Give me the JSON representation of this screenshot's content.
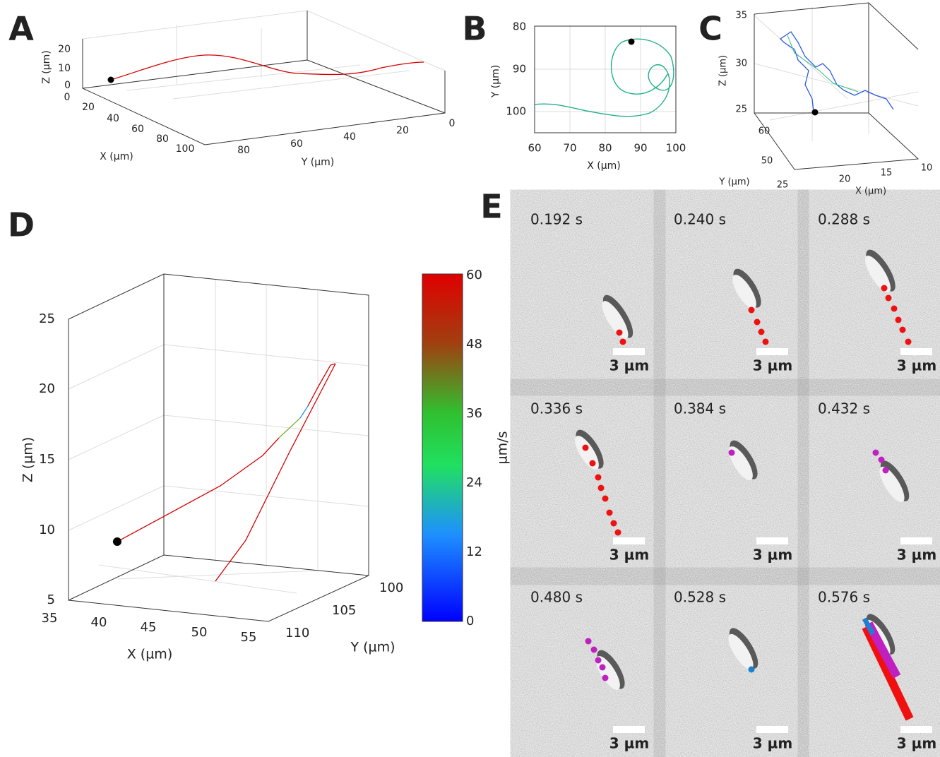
{
  "panel_labels": [
    "A",
    "B",
    "C",
    "D",
    "E"
  ],
  "panel_a": {
    "xlabel": "X (µm)",
    "ylabel": "Y (µm)",
    "zlabel": "Z (µm)",
    "xticks": [
      "0",
      "20",
      "40",
      "60",
      "80",
      "100"
    ],
    "yticks": [
      "80",
      "60",
      "40",
      "20",
      "0"
    ],
    "zticks": [
      "0",
      "10",
      "20"
    ]
  },
  "panel_b": {
    "xlabel": "X (µm)",
    "ylabel": "Y (µm)",
    "xticks": [
      "60",
      "70",
      "80",
      "90",
      "100"
    ],
    "yticks": [
      "80",
      "90",
      "100"
    ]
  },
  "panel_c": {
    "xlabel": "X (µm)",
    "ylabel": "Y (µm)",
    "zlabel": "Z (µm)",
    "xticks": [
      "25",
      "20",
      "15",
      "10"
    ],
    "yticks": [
      "50",
      "60"
    ],
    "zticks": [
      "25",
      "30",
      "35"
    ]
  },
  "panel_d": {
    "xlabel": "X (µm)",
    "ylabel": "Y (µm)",
    "zlabel": "Z (µm)",
    "xticks": [
      "35",
      "40",
      "45",
      "50",
      "55"
    ],
    "yticks": [
      "100",
      "105",
      "110"
    ],
    "zticks": [
      "5",
      "10",
      "15",
      "20",
      "25"
    ]
  },
  "colorbar": {
    "label": "µm/s",
    "ticks": [
      "0",
      "12",
      "24",
      "36",
      "48",
      "60"
    ]
  },
  "panel_e": {
    "frames": [
      {
        "time": "0.192 s",
        "scale": "3 µm"
      },
      {
        "time": "0.240 s",
        "scale": "3 µm"
      },
      {
        "time": "0.288 s",
        "scale": "3 µm"
      },
      {
        "time": "0.336 s",
        "scale": "3 µm"
      },
      {
        "time": "0.384 s",
        "scale": "3 µm"
      },
      {
        "time": "0.432 s",
        "scale": "3 µm"
      },
      {
        "time": "0.480 s",
        "scale": "3 µm"
      },
      {
        "time": "0.528 s",
        "scale": "3 µm"
      },
      {
        "time": "0.576 s",
        "scale": "3 µm"
      }
    ]
  }
}
